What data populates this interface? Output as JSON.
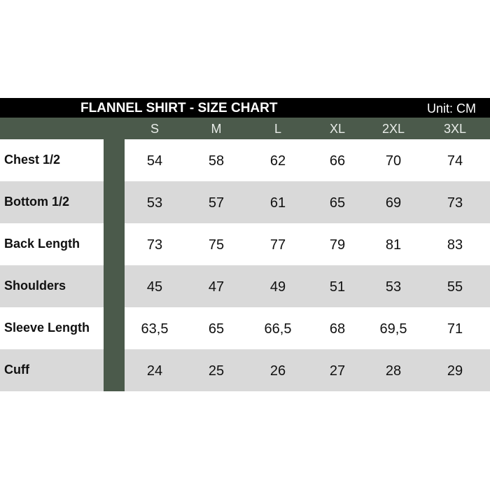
{
  "title": "FLANNEL SHIRT - SIZE CHART",
  "unit": "Unit: CM",
  "sizes": [
    "S",
    "M",
    "L",
    "XL",
    "2XL",
    "3XL"
  ],
  "rows": [
    {
      "label": "Chest 1/2",
      "values": [
        "54",
        "58",
        "62",
        "66",
        "70",
        "74"
      ]
    },
    {
      "label": "Bottom 1/2",
      "values": [
        "53",
        "57",
        "61",
        "65",
        "69",
        "73"
      ]
    },
    {
      "label": "Back Length",
      "values": [
        "73",
        "75",
        "77",
        "79",
        "81",
        "83"
      ]
    },
    {
      "label": "Shoulders",
      "values": [
        "45",
        "47",
        "49",
        "51",
        "53",
        "55"
      ]
    },
    {
      "label": "Sleeve Length",
      "values": [
        "63,5",
        "65",
        "66,5",
        "68",
        "69,5",
        "71"
      ]
    },
    {
      "label": "Cuff",
      "values": [
        "24",
        "25",
        "26",
        "27",
        "28",
        "29"
      ]
    }
  ],
  "colors": {
    "header_bg": "#000000",
    "accent_green": "#4b5a4b",
    "alt_row": "#d9d9d9"
  }
}
